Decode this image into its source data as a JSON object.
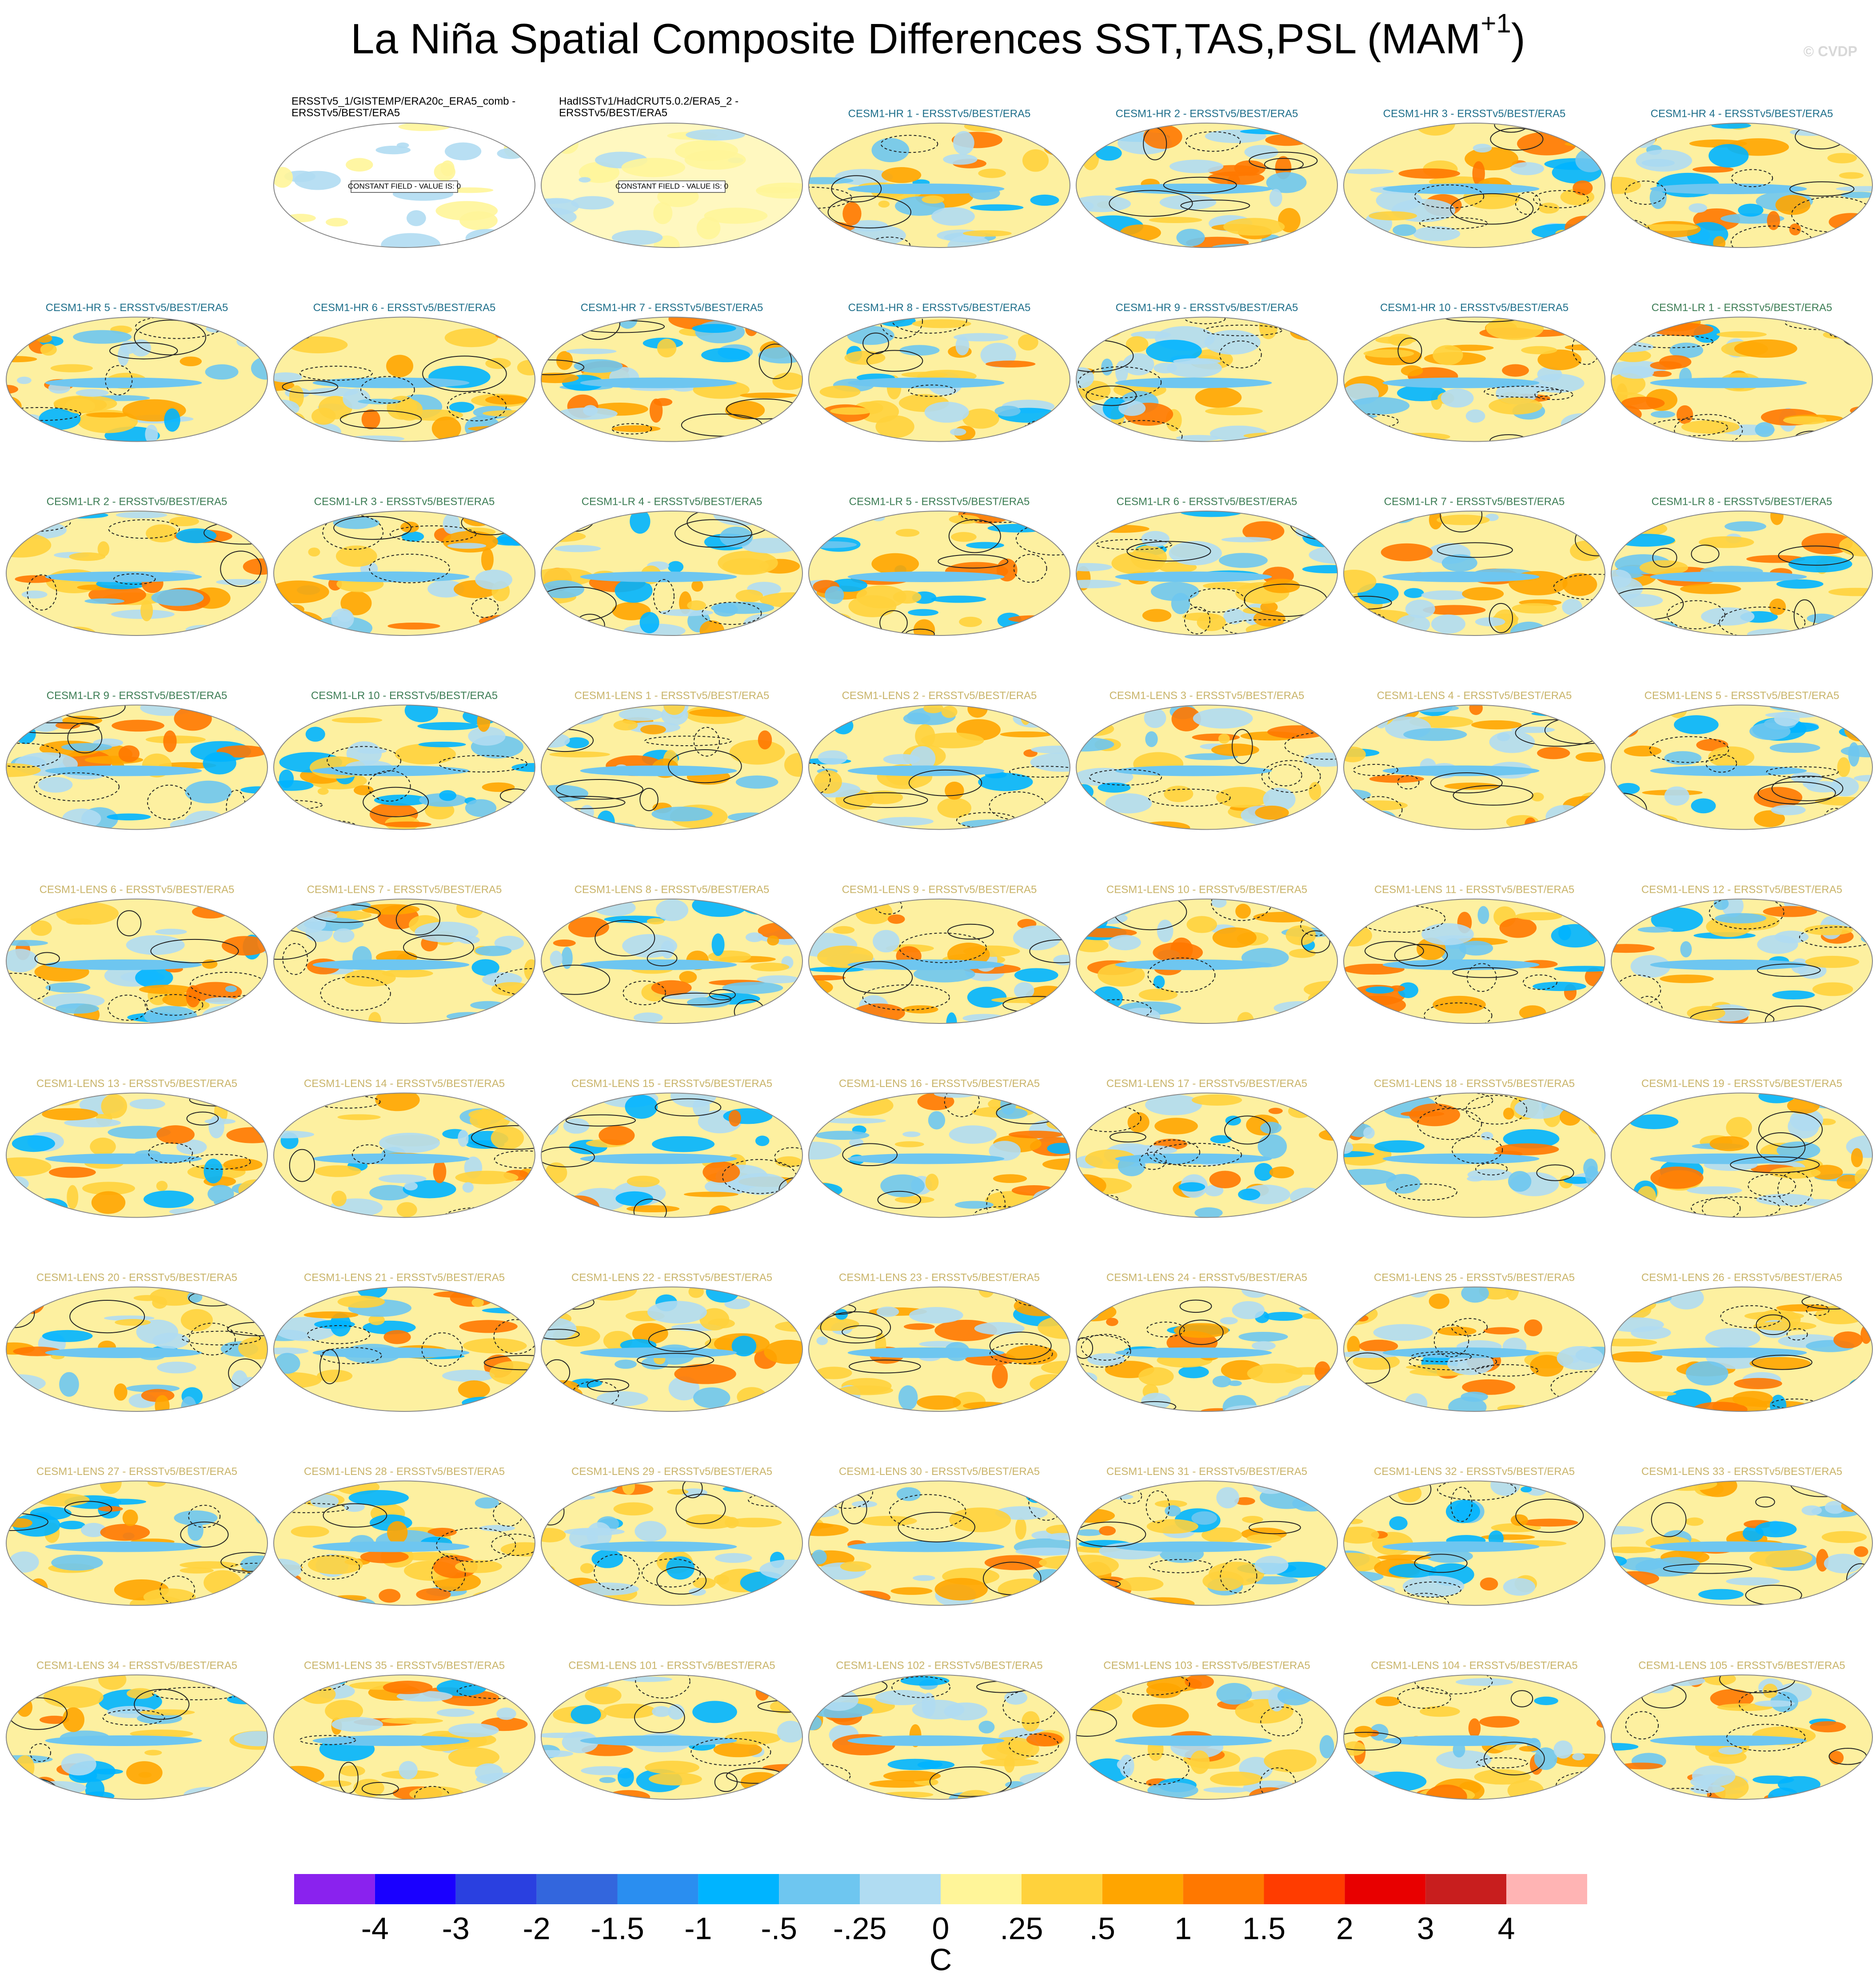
{
  "title": "La Niña Spatial Composite Differences SST,TAS,PSL (MAM",
  "title_superscript": "+1",
  "title_end": ")",
  "watermark": "© CVDP",
  "panels": [
    {
      "title": "ERSSTv5_1/GISTEMP/ERA20c_ERA5_comb -",
      "title_line2": "ERSSTv5/BEST/ERA5",
      "color": "#000000",
      "note": "CONSTANT FIELD - VALUE IS: 0"
    },
    {
      "title": "HadISSTv1/HadCRUT5.0.2/ERA5_2 -",
      "title_line2": "ERSSTv5/BEST/ERA5",
      "color": "#000000",
      "note": "CONSTANT FIELD - VALUE IS: 0"
    },
    {
      "title": "CESM1-HR 1 - ERSSTv5/BEST/ERA5",
      "color": "#1f6f8b"
    },
    {
      "title": "CESM1-HR 2 - ERSSTv5/BEST/ERA5",
      "color": "#1f6f8b"
    },
    {
      "title": "CESM1-HR 3 - ERSSTv5/BEST/ERA5",
      "color": "#1f6f8b"
    },
    {
      "title": "CESM1-HR 4 - ERSSTv5/BEST/ERA5",
      "color": "#1f6f8b"
    },
    {
      "title": "CESM1-HR 5 - ERSSTv5/BEST/ERA5",
      "color": "#1f6f8b"
    },
    {
      "title": "CESM1-HR 6 - ERSSTv5/BEST/ERA5",
      "color": "#1f6f8b"
    },
    {
      "title": "CESM1-HR 7 - ERSSTv5/BEST/ERA5",
      "color": "#1f6f8b"
    },
    {
      "title": "CESM1-HR 8 - ERSSTv5/BEST/ERA5",
      "color": "#1f6f8b"
    },
    {
      "title": "CESM1-HR 9 - ERSSTv5/BEST/ERA5",
      "color": "#1f6f8b"
    },
    {
      "title": "CESM1-HR 10 - ERSSTv5/BEST/ERA5",
      "color": "#1f6f8b"
    },
    {
      "title": "CESM1-LR 1 - ERSSTv5/BEST/ERA5",
      "color": "#3d7d55"
    },
    {
      "title": "CESM1-LR 2 - ERSSTv5/BEST/ERA5",
      "color": "#3d7d55"
    },
    {
      "title": "CESM1-LR 3 - ERSSTv5/BEST/ERA5",
      "color": "#3d7d55"
    },
    {
      "title": "CESM1-LR 4 - ERSSTv5/BEST/ERA5",
      "color": "#3d7d55"
    },
    {
      "title": "CESM1-LR 5 - ERSSTv5/BEST/ERA5",
      "color": "#3d7d55"
    },
    {
      "title": "CESM1-LR 6 - ERSSTv5/BEST/ERA5",
      "color": "#3d7d55"
    },
    {
      "title": "CESM1-LR 7 - ERSSTv5/BEST/ERA5",
      "color": "#3d7d55"
    },
    {
      "title": "CESM1-LR 8 - ERSSTv5/BEST/ERA5",
      "color": "#3d7d55"
    },
    {
      "title": "CESM1-LR 9 - ERSSTv5/BEST/ERA5",
      "color": "#3d7d55"
    },
    {
      "title": "CESM1-LR 10 - ERSSTv5/BEST/ERA5",
      "color": "#3d7d55"
    },
    {
      "title": "CESM1-LENS 1 - ERSSTv5/BEST/ERA5",
      "color": "#c9b46a"
    },
    {
      "title": "CESM1-LENS 2 - ERSSTv5/BEST/ERA5",
      "color": "#c9b46a"
    },
    {
      "title": "CESM1-LENS 3 - ERSSTv5/BEST/ERA5",
      "color": "#c9b46a"
    },
    {
      "title": "CESM1-LENS 4 - ERSSTv5/BEST/ERA5",
      "color": "#c9b46a"
    },
    {
      "title": "CESM1-LENS 5 - ERSSTv5/BEST/ERA5",
      "color": "#c9b46a"
    },
    {
      "title": "CESM1-LENS 6 - ERSSTv5/BEST/ERA5",
      "color": "#c9b46a"
    },
    {
      "title": "CESM1-LENS 7 - ERSSTv5/BEST/ERA5",
      "color": "#c9b46a"
    },
    {
      "title": "CESM1-LENS 8 - ERSSTv5/BEST/ERA5",
      "color": "#c9b46a"
    },
    {
      "title": "CESM1-LENS 9 - ERSSTv5/BEST/ERA5",
      "color": "#c9b46a"
    },
    {
      "title": "CESM1-LENS 10 - ERSSTv5/BEST/ERA5",
      "color": "#c9b46a"
    },
    {
      "title": "CESM1-LENS 11 - ERSSTv5/BEST/ERA5",
      "color": "#c9b46a"
    },
    {
      "title": "CESM1-LENS 12 - ERSSTv5/BEST/ERA5",
      "color": "#c9b46a"
    },
    {
      "title": "CESM1-LENS 13 - ERSSTv5/BEST/ERA5",
      "color": "#c9b46a"
    },
    {
      "title": "CESM1-LENS 14 - ERSSTv5/BEST/ERA5",
      "color": "#c9b46a"
    },
    {
      "title": "CESM1-LENS 15 - ERSSTv5/BEST/ERA5",
      "color": "#c9b46a"
    },
    {
      "title": "CESM1-LENS 16 - ERSSTv5/BEST/ERA5",
      "color": "#c9b46a"
    },
    {
      "title": "CESM1-LENS 17 - ERSSTv5/BEST/ERA5",
      "color": "#c9b46a"
    },
    {
      "title": "CESM1-LENS 18 - ERSSTv5/BEST/ERA5",
      "color": "#c9b46a"
    },
    {
      "title": "CESM1-LENS 19 - ERSSTv5/BEST/ERA5",
      "color": "#c9b46a"
    },
    {
      "title": "CESM1-LENS 20 - ERSSTv5/BEST/ERA5",
      "color": "#c9b46a"
    },
    {
      "title": "CESM1-LENS 21 - ERSSTv5/BEST/ERA5",
      "color": "#c9b46a"
    },
    {
      "title": "CESM1-LENS 22 - ERSSTv5/BEST/ERA5",
      "color": "#c9b46a"
    },
    {
      "title": "CESM1-LENS 23 - ERSSTv5/BEST/ERA5",
      "color": "#c9b46a"
    },
    {
      "title": "CESM1-LENS 24 - ERSSTv5/BEST/ERA5",
      "color": "#c9b46a"
    },
    {
      "title": "CESM1-LENS 25 - ERSSTv5/BEST/ERA5",
      "color": "#c9b46a"
    },
    {
      "title": "CESM1-LENS 26 - ERSSTv5/BEST/ERA5",
      "color": "#c9b46a"
    },
    {
      "title": "CESM1-LENS 27 - ERSSTv5/BEST/ERA5",
      "color": "#c9b46a"
    },
    {
      "title": "CESM1-LENS 28 - ERSSTv5/BEST/ERA5",
      "color": "#c9b46a"
    },
    {
      "title": "CESM1-LENS 29 - ERSSTv5/BEST/ERA5",
      "color": "#c9b46a"
    },
    {
      "title": "CESM1-LENS 30 - ERSSTv5/BEST/ERA5",
      "color": "#c9b46a"
    },
    {
      "title": "CESM1-LENS 31 - ERSSTv5/BEST/ERA5",
      "color": "#c9b46a"
    },
    {
      "title": "CESM1-LENS 32 - ERSSTv5/BEST/ERA5",
      "color": "#c9b46a"
    },
    {
      "title": "CESM1-LENS 33 - ERSSTv5/BEST/ERA5",
      "color": "#c9b46a"
    },
    {
      "title": "CESM1-LENS 34 - ERSSTv5/BEST/ERA5",
      "color": "#c9b46a"
    },
    {
      "title": "CESM1-LENS 35 - ERSSTv5/BEST/ERA5",
      "color": "#c9b46a"
    },
    {
      "title": "CESM1-LENS 101 - ERSSTv5/BEST/ERA5",
      "color": "#c9b46a"
    },
    {
      "title": "CESM1-LENS 102 - ERSSTv5/BEST/ERA5",
      "color": "#c9b46a"
    },
    {
      "title": "CESM1-LENS 103 - ERSSTv5/BEST/ERA5",
      "color": "#c9b46a"
    },
    {
      "title": "CESM1-LENS 104 - ERSSTv5/BEST/ERA5",
      "color": "#c9b46a"
    },
    {
      "title": "CESM1-LENS 105 - ERSSTv5/BEST/ERA5",
      "color": "#c9b46a"
    }
  ],
  "colorbar": {
    "colors": [
      "#8a22ee",
      "#1a00ff",
      "#2a40e0",
      "#3366dd",
      "#2a8ef0",
      "#00b4ff",
      "#6ec6f0",
      "#b0dcf2",
      "#fff599",
      "#ffd23c",
      "#ffa500",
      "#ff7800",
      "#ff3c00",
      "#e80000",
      "#c81e1e",
      "#ffb4b4"
    ],
    "levels": [
      -4,
      -3,
      -2,
      -1.5,
      -1,
      {
        "value": -0.5,
        "label": "-.5"
      },
      {
        "value": -0.25,
        "label": "-.25"
      },
      0,
      {
        "value": 0.25,
        "label": ".25"
      },
      {
        "value": 0.5,
        "label": ".5"
      },
      1,
      1.5,
      2,
      3,
      4
    ],
    "label": "C"
  }
}
